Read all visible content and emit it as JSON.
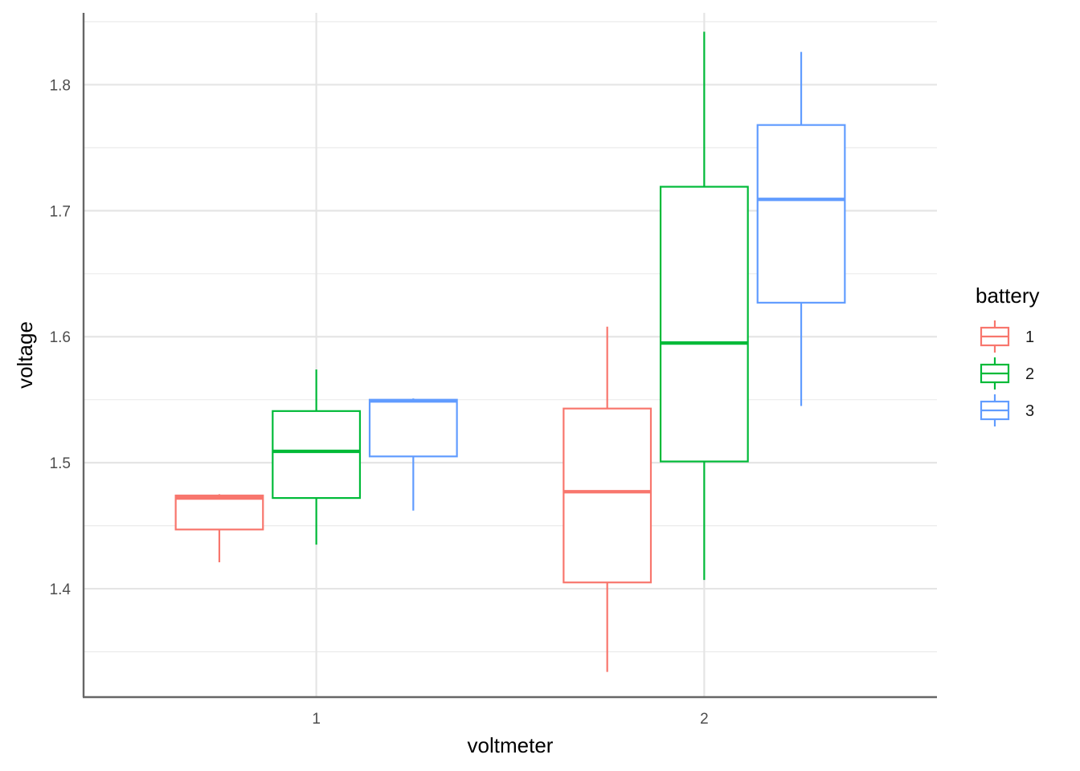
{
  "chart_data": {
    "type": "boxplot",
    "xlabel": "voltmeter",
    "ylabel": "voltage",
    "categories": [
      "1",
      "2"
    ],
    "ylim": [
      1.314,
      1.857
    ],
    "yticks": [
      1.4,
      1.5,
      1.6,
      1.7,
      1.8
    ],
    "ytick_labels": [
      "1.4",
      "1.5",
      "1.6",
      "1.7",
      "1.8"
    ],
    "grid": true,
    "legend": {
      "title": "battery",
      "placement": "right",
      "entries": [
        "1",
        "2",
        "3"
      ]
    },
    "series": [
      {
        "name": "1",
        "color": "#F8766D",
        "boxes": [
          {
            "category": "1",
            "min": 1.421,
            "q1": 1.447,
            "median": 1.472,
            "q3": 1.474,
            "max": 1.475
          },
          {
            "category": "2",
            "min": 1.334,
            "q1": 1.405,
            "median": 1.477,
            "q3": 1.543,
            "max": 1.608
          }
        ]
      },
      {
        "name": "2",
        "color": "#00BA38",
        "boxes": [
          {
            "category": "1",
            "min": 1.435,
            "q1": 1.472,
            "median": 1.509,
            "q3": 1.541,
            "max": 1.574
          },
          {
            "category": "2",
            "min": 1.407,
            "q1": 1.501,
            "median": 1.595,
            "q3": 1.719,
            "max": 1.842
          }
        ]
      },
      {
        "name": "3",
        "color": "#619CFF",
        "boxes": [
          {
            "category": "1",
            "min": 1.462,
            "q1": 1.505,
            "median": 1.549,
            "q3": 1.55,
            "max": 1.551
          },
          {
            "category": "2",
            "min": 1.545,
            "q1": 1.627,
            "median": 1.709,
            "q3": 1.768,
            "max": 1.826
          }
        ]
      }
    ]
  }
}
